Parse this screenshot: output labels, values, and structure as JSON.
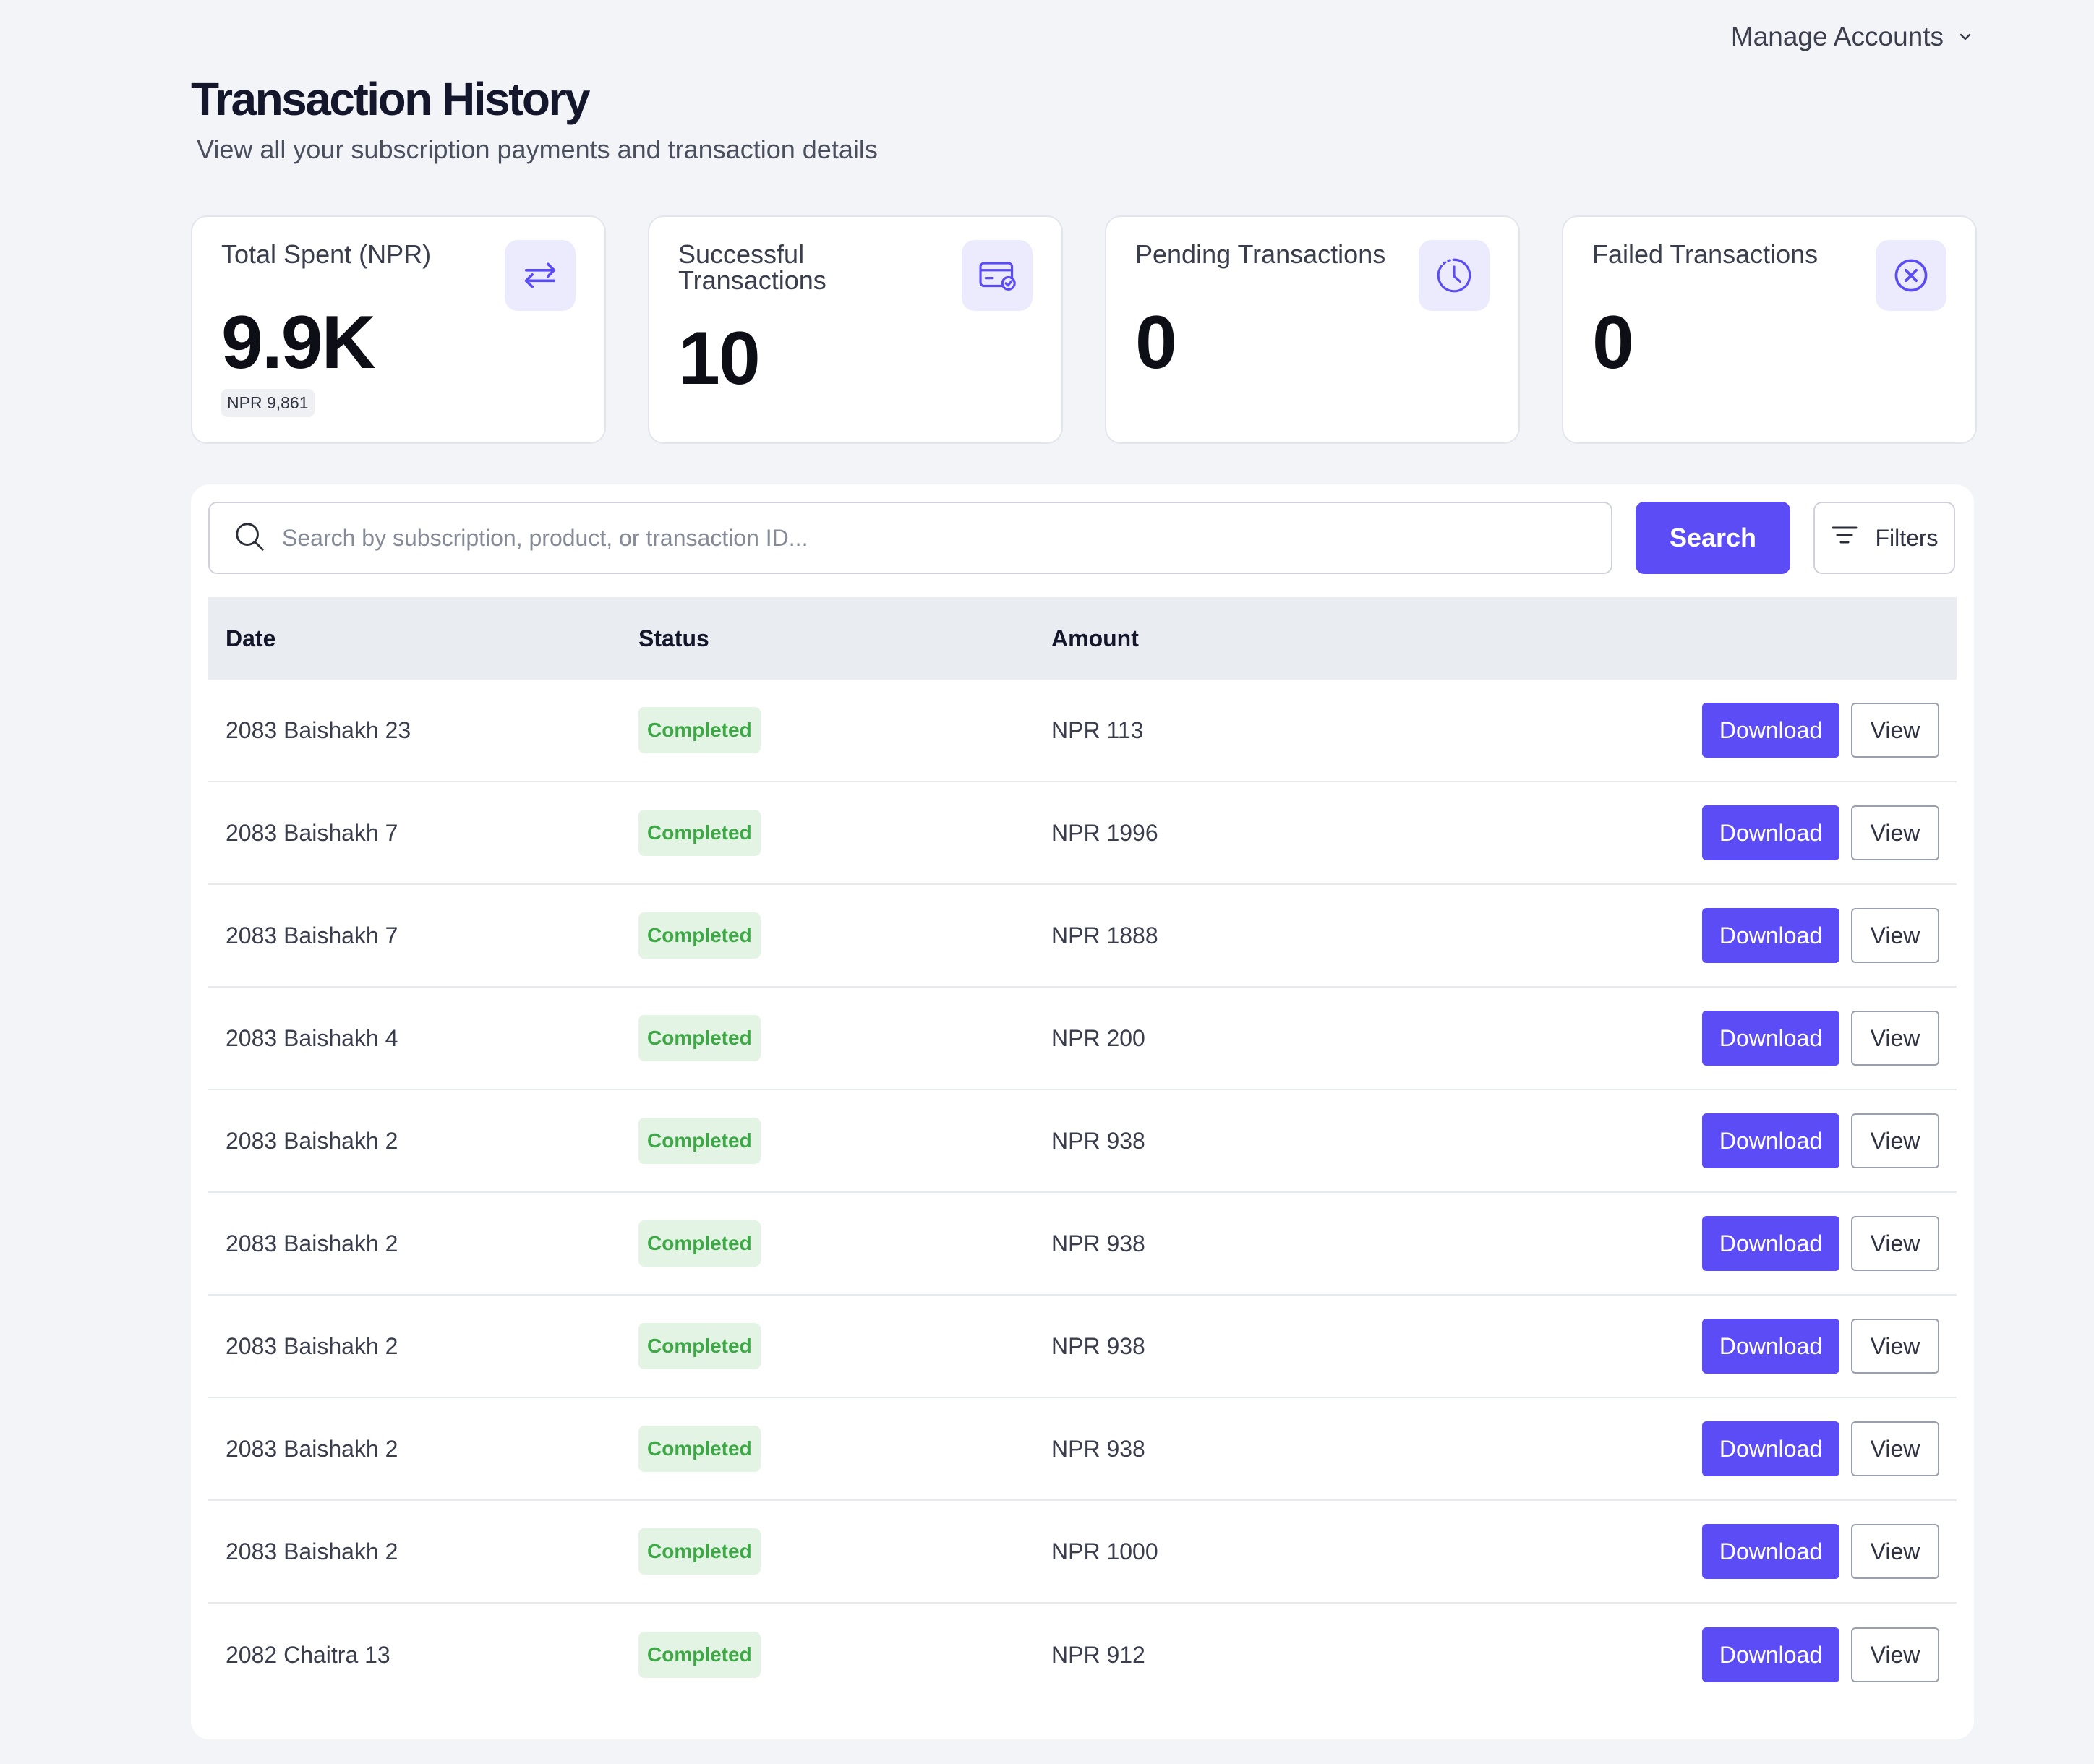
{
  "header": {
    "account_menu": "Manage Accounts",
    "title": "Transaction History",
    "subtitle": "View all your subscription payments and transaction details"
  },
  "stats": [
    {
      "label": "Total Spent (NPR)",
      "value": "9.9K",
      "sub": "NPR 9,861",
      "icon": "transfer-arrows-icon"
    },
    {
      "label": "Successful Transactions",
      "value": "10",
      "icon": "card-check-icon"
    },
    {
      "label": "Pending Transactions",
      "value": "0",
      "icon": "clock-icon"
    },
    {
      "label": "Failed Transactions",
      "value": "0",
      "icon": "x-circle-icon"
    }
  ],
  "search": {
    "placeholder": "Search by subscription, product, or transaction ID...",
    "value": "",
    "button_label": "Search",
    "filters_label": "Filters"
  },
  "table": {
    "columns": [
      "Date",
      "Status",
      "Amount"
    ],
    "download_label": "Download",
    "view_label": "View",
    "rows": [
      {
        "date": "2083 Baishakh 23",
        "status": "Completed",
        "amount": "NPR 113"
      },
      {
        "date": "2083 Baishakh 7",
        "status": "Completed",
        "amount": "NPR 1996"
      },
      {
        "date": "2083 Baishakh 7",
        "status": "Completed",
        "amount": "NPR 1888"
      },
      {
        "date": "2083 Baishakh 4",
        "status": "Completed",
        "amount": "NPR 200"
      },
      {
        "date": "2083 Baishakh 2",
        "status": "Completed",
        "amount": "NPR 938"
      },
      {
        "date": "2083 Baishakh 2",
        "status": "Completed",
        "amount": "NPR 938"
      },
      {
        "date": "2083 Baishakh 2",
        "status": "Completed",
        "amount": "NPR 938"
      },
      {
        "date": "2083 Baishakh 2",
        "status": "Completed",
        "amount": "NPR 938"
      },
      {
        "date": "2083 Baishakh 2",
        "status": "Completed",
        "amount": "NPR 1000"
      },
      {
        "date": "2082 Chaitra 13",
        "status": "Completed",
        "amount": "NPR 912"
      }
    ]
  },
  "colors": {
    "accent": "#5b4cf5",
    "icon_bg": "#ecebfd",
    "success_bg": "#e3f4e4",
    "success_text": "#3ea847",
    "page_bg": "#f3f4f8"
  }
}
